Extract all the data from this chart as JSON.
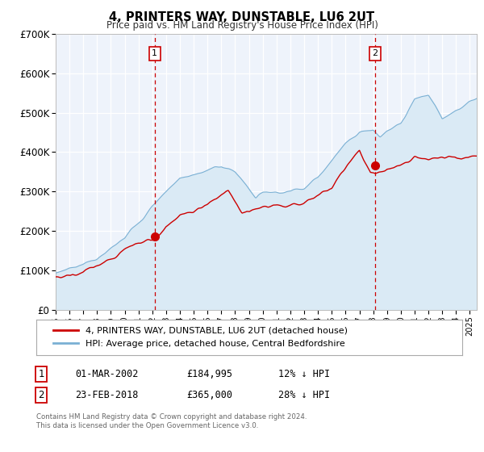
{
  "title": "4, PRINTERS WAY, DUNSTABLE, LU6 2UT",
  "subtitle": "Price paid vs. HM Land Registry's House Price Index (HPI)",
  "hpi_label": "HPI: Average price, detached house, Central Bedfordshire",
  "property_label": "4, PRINTERS WAY, DUNSTABLE, LU6 2UT (detached house)",
  "sale1": {
    "date": 2002.17,
    "price": 184995,
    "label": "1",
    "x_label": "01-MAR-2002",
    "price_str": "£184,995",
    "pct": "12% ↓ HPI"
  },
  "sale2": {
    "date": 2018.14,
    "price": 365000,
    "label": "2",
    "x_label": "23-FEB-2018",
    "price_str": "£365,000",
    "pct": "28% ↓ HPI"
  },
  "ylim": [
    0,
    700000
  ],
  "xlim_start": 1995.0,
  "xlim_end": 2025.5,
  "hpi_color": "#7ab0d4",
  "hpi_fill_color": "#daeaf5",
  "property_color": "#cc0000",
  "vline_color": "#cc0000",
  "bg_color": "#eef3fb",
  "grid_color": "#ffffff",
  "footer_text": "Contains HM Land Registry data © Crown copyright and database right 2024.\nThis data is licensed under the Open Government Licence v3.0.",
  "ytick_labels": [
    "£0",
    "£100K",
    "£200K",
    "£300K",
    "£400K",
    "£500K",
    "£600K",
    "£700K"
  ],
  "ytick_values": [
    0,
    100000,
    200000,
    300000,
    400000,
    500000,
    600000,
    700000
  ]
}
